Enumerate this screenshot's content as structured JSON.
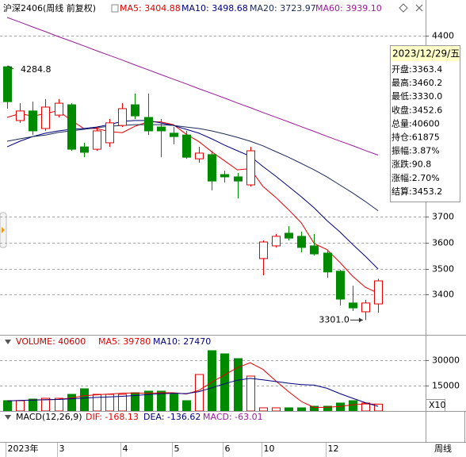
{
  "chart_data": [
    {
      "type": "candlestick",
      "title": "沪深2406(周线 前复权)",
      "categories": [
        "2023年",
        null,
        null,
        null,
        "3",
        null,
        null,
        null,
        null,
        "4",
        null,
        null,
        null,
        "5",
        null,
        null,
        null,
        "6",
        null,
        null,
        "10",
        null,
        null,
        null,
        null,
        "12",
        null,
        null,
        null,
        null
      ],
      "open": [
        4281,
        4073,
        4110,
        4042,
        4094,
        4134,
        3971,
        3962,
        3987,
        4054,
        4134,
        4085,
        4048,
        4024,
        4017,
        3925,
        3941,
        3864,
        3855,
        3824,
        3539,
        3588,
        3637,
        3625,
        3588,
        3560,
        3490,
        3367,
        3333,
        3363.4
      ],
      "high": [
        4284.8,
        4140,
        4146,
        4156,
        4156,
        4140,
        3987,
        4048,
        4079,
        4140,
        4177,
        4177,
        4079,
        4048,
        4033,
        3971,
        3956,
        3879,
        3870,
        3971,
        3609,
        3634,
        3664,
        3643,
        3634,
        3572,
        3496,
        3434,
        3379,
        3460.2
      ],
      "low": [
        4119,
        4064,
        4017,
        4033,
        4085,
        3956,
        3931,
        3956,
        3971,
        4048,
        4079,
        4017,
        3931,
        3981,
        3925,
        3910,
        3803,
        3833,
        3772,
        3818,
        3474,
        3582,
        3609,
        3563,
        3551,
        3465,
        3357,
        3336,
        3301.0,
        3330.0
      ],
      "close": [
        4146,
        4110,
        4033,
        4125,
        4140,
        3962,
        3950,
        4033,
        4064,
        4119,
        4091,
        4033,
        4033,
        4011,
        3931,
        3947,
        3839,
        3855,
        3839,
        3956,
        3603,
        3625,
        3618,
        3582,
        3557,
        3487,
        3382,
        3348,
        3367,
        3452.6
      ],
      "up_color": "#e60000",
      "down_color": "#008a00",
      "series": [
        {
          "label": "MA5: 3404.88",
          "color": "#e60000",
          "values": [
            4085,
            4100,
            4090,
            4100,
            4111,
            4074,
            4042,
            4042,
            4030,
            4026,
            4051,
            4068,
            4068,
            4057,
            4020,
            3991,
            3952,
            3917,
            3882,
            3887,
            3818,
            3776,
            3728,
            3677,
            3597,
            3574,
            3525,
            3471,
            3428,
            3404.88
          ]
        },
        {
          "label": "MA10: 3498.68",
          "color": "#000080",
          "values": [
            3971,
            3993,
            4011,
            4024,
            4033,
            4039,
            4042,
            4048,
            4057,
            4070,
            4073,
            4073,
            4064,
            4054,
            4039,
            4024,
            4002,
            3978,
            3956,
            3935,
            3895,
            3858,
            3818,
            3778,
            3735,
            3686,
            3643,
            3594,
            3548,
            3498.68
          ]
        },
        {
          "label": "MA20: 3723.97",
          "color": "#1c2a5a",
          "values": [
            3993,
            4002,
            4011,
            4017,
            4027,
            4033,
            4039,
            4045,
            4051,
            4054,
            4057,
            4057,
            4057,
            4054,
            4048,
            4042,
            4033,
            4021,
            4008,
            3993,
            3975,
            3953,
            3931,
            3907,
            3882,
            3855,
            3824,
            3793,
            3760,
            3723.97
          ]
        },
        {
          "label": "MA60: 3939.10",
          "color": "#9a1a9a",
          "values": [
            4472,
            4454,
            4435,
            4417,
            4398,
            4380,
            4362,
            4343,
            4325,
            4307,
            4288,
            4270,
            4251,
            4233,
            4215,
            4196,
            4178,
            4160,
            4141,
            4123,
            4104,
            4086,
            4068,
            4049,
            4031,
            4012,
            3994,
            3976,
            3957,
            3939.1
          ]
        }
      ],
      "ylim": [
        3250,
        4478
      ],
      "yticks": [
        3400,
        3500,
        3600,
        3700,
        4400
      ],
      "grid": true,
      "high_label": "4284.8",
      "low_label": "3301.0",
      "info": {
        "date": "2023/12/29/五",
        "rows": [
          "开盘:3363.4",
          "最高:3460.2",
          "最低:3330.0",
          "收盘:3452.6",
          "总量:40600",
          "持仓:61875",
          "振幅:3.87%",
          "涨跌:90.8",
          "涨幅:2.70%",
          "结算:3453.2"
        ]
      },
      "period_label": "周线"
    },
    {
      "type": "bar",
      "title": "VOLUME: 40600",
      "values": [
        6090,
        6090,
        7030,
        7500,
        7500,
        9840,
        13125,
        9840,
        9840,
        9840,
        10780,
        11720,
        11720,
        9840,
        6090,
        21560,
        35625,
        33750,
        30940,
        20625,
        1875,
        1875,
        1875,
        1875,
        2810,
        2810,
        4690,
        6090,
        4690,
        4060
      ],
      "series": [
        {
          "label": "MA5: 39780",
          "color": "#e60000",
          "values": [
            6000,
            6200,
            6500,
            6700,
            6842,
            7592,
            8999,
            9561,
            10029,
            10497,
            10685,
            10404,
            10780,
            10780,
            10030,
            12186,
            16967,
            21373,
            25593,
            28500,
            24563,
            17813,
            11438,
            5625,
            2062,
            2249,
            2612,
            3655,
            4218,
            3978
          ]
        },
        {
          "label": "MA10: 27470",
          "color": "#000080",
          "values": [
            6000,
            6200,
            6400,
            6600,
            6800,
            7200,
            7600,
            8000,
            8300,
            8670,
            9139,
            9702,
            10171,
            10405,
            10264,
            11436,
            13686,
            16077,
            18187,
            19265,
            18375,
            17390,
            16406,
            15609,
            15281,
            13406,
            10313,
            7547,
            4922,
            2747
          ]
        }
      ],
      "ylim": [
        0,
        36560
      ],
      "yticks": [
        15000,
        30000
      ],
      "grid": true,
      "unit_label": "X10"
    },
    {
      "type": "macd",
      "title": "MACD(12,26,9)",
      "series": [
        {
          "label": "DIF: -168.13",
          "color": "#e60000"
        },
        {
          "label": "DEA: -136.62",
          "color": "#000080"
        },
        {
          "label": "MACD: -63.01",
          "color": "#9a1a9a"
        }
      ]
    }
  ]
}
